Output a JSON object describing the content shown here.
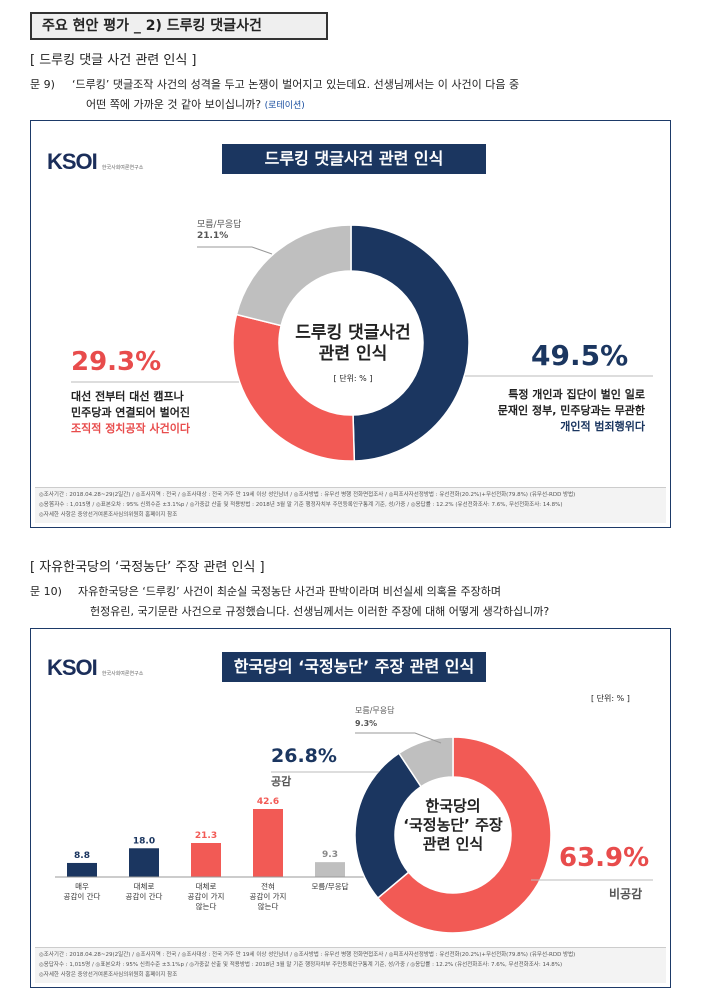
{
  "header": {
    "title": "주요 현안 평가 _ 2) 드루킹 댓글사건"
  },
  "q1": {
    "heading": "[ 드루킹 댓글 사건 관련 인식 ]",
    "number": "문 9)",
    "line1": "‘드루킹’ 댓글조작 사건의 성격을 두고 논쟁이 벌어지고 있는데요. 선생님께서는 이 사건이 다음 중",
    "line2": "어떤 쪽에 가까운 것 같아 보이십니까?",
    "tag": "(로테이션)"
  },
  "chart1": {
    "logo": "KSOI",
    "logo_sub": "한국사회여론연구소",
    "banner": "드루킹 댓글사건 관련 인식",
    "center_l1": "드루킹 댓글사건",
    "center_l2": "관련 인식",
    "unit": "[ 단위: % ]",
    "right_value": "49.5%",
    "right_l1": "특정 개인과 집단이 벌인 일로",
    "right_l2": "문재인 정부, 민주당과는 무관한",
    "right_l3": "개인적 범죄행위다",
    "left_value": "29.3%",
    "left_l1": "대선 전부터 대선 캠프나",
    "left_l2": "민주당과 연결되어 벌어진",
    "left_l3": "조직적 정치공작 사건이다",
    "dk_label": "모름/무응답",
    "dk_value": "21.1%",
    "foot1": "◎조사기간 : 2018.04.28~29(2일간)  / ◎조사지역 : 전국 / ◎조사대상 : 전국 거주 만 19세 이상 성인남녀 / ◎조사방법 : 유무선 병행 전화면접조사 / ◎피조사자선정방법 : 유선전화(20.2%)+무선전화(79.8%) (유무선-RDD 방법)",
    "foot2": "◎응答자수 : 1,015명 / ◎표본오차 : 95% 신뢰수준 ±3.1%p / ◎가중값 산출 및 적용방법 : 2018년 3월 말 기준 행정자치부 주민등록인구통계 기준, 성/가중 / ◎응답률 : 12.2% (유선전화조사: 7.6%, 무선전화조사: 14.8%)",
    "foot3": "◎자세한 사항은 중앙선거여론조사심의위원회 홈페이지 참조",
    "chart_data": {
      "type": "pie",
      "categories": [
        "개인적 범죄행위다",
        "조직적 정치공작 사건이다",
        "모름/무응답"
      ],
      "values": [
        49.5,
        29.3,
        21.1
      ],
      "colors": [
        "#1b3660",
        "#f25a55",
        "#bfbfbf"
      ]
    }
  },
  "q2": {
    "heading": "[ 자유한국당의   ‘국정농단’ 주장 관련 인식 ]",
    "number": "문 10)",
    "line1": "자유한국당은 ‘드루킹’ 사건이 최순실 국정농단 사건과 판박이라며 비선실세 의혹을 주장하며",
    "line2": "헌정유린, 국기문란 사건으로 규정했습니다. 선생님께서는 이러한 주장에 대해 어떻게 생각하십니까?"
  },
  "chart2": {
    "logo": "KSOI",
    "logo_sub": "한국사회여론연구소",
    "banner": "한국당의 ‘국정농단’ 주장 관련 인식",
    "unit": "[ 단위: % ]",
    "center_l1": "한국당의",
    "center_l2": "‘국정농단’ 주장",
    "center_l3": "관련 인식",
    "agree_value": "26.8%",
    "agree_label": "공감",
    "disagree_value": "63.9%",
    "disagree_label": "비공감",
    "dk_label": "모름/무응답",
    "dk_value": "9.3%",
    "bars": [
      {
        "value": 8.8,
        "label": "8.8",
        "cat_l1": "매우",
        "cat_l2": "공감이 간다",
        "cat_l3": "",
        "color": "#1b3660"
      },
      {
        "value": 18.0,
        "label": "18.0",
        "cat_l1": "대체로",
        "cat_l2": "공감이 간다",
        "cat_l3": "",
        "color": "#1b3660"
      },
      {
        "value": 21.3,
        "label": "21.3",
        "cat_l1": "대체로",
        "cat_l2": "공감이 가지",
        "cat_l3": "않는다",
        "color": "#f25a55"
      },
      {
        "value": 42.6,
        "label": "42.6",
        "cat_l1": "전혀",
        "cat_l2": "공감이 가지",
        "cat_l3": "않는다",
        "color": "#f25a55"
      },
      {
        "value": 9.3,
        "label": "9.3",
        "cat_l1": "모름/무응답",
        "cat_l2": "",
        "cat_l3": "",
        "color": "#bfbfbf"
      }
    ],
    "foot1": "◎조사기간 : 2018.04.28~29(2일간)  / ◎조사지역 : 전국 / ◎조사대상 : 전국 거주 만 19세 이상 성인남녀 / ◎조사방법 : 유무선 병행 전화면접조사 / ◎피조사자선정방법 : 유선전화(20.2%)+무선전화(79.8%) (유무선-RDD 방법)",
    "foot2": "◎응답자수 : 1,015명 / ◎표본오차 : 95% 신뢰수준 ±3.1%p / ◎가중값 산출 및 적용방법 : 2018년 3월 말 기준 행정자치부 주민등록인구통계 기준, 성/가중 / ◎응답률 : 12.2% (유선전화조사: 7.6%, 무선전화조사: 14.8%)",
    "foot3": "◎자세한 사항은 중앙선거여론조사심의위원회 홈페이지 참조",
    "chart_data": {
      "type": "pie",
      "categories": [
        "비공감",
        "공감",
        "모름/무응답"
      ],
      "values": [
        63.9,
        26.8,
        9.3
      ],
      "colors": [
        "#f25a55",
        "#1b3660",
        "#bfbfbf"
      ]
    }
  }
}
